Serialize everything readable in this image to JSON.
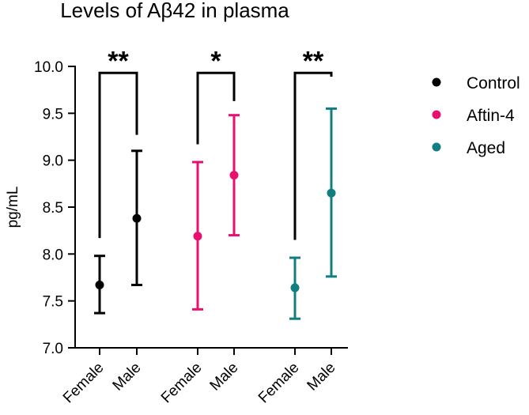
{
  "chart_data": {
    "type": "scatter",
    "title": "Levels of  Aβ42 in plasma",
    "ylabel": "pg/mL",
    "xlabel": "",
    "ylim": [
      7.0,
      10.0
    ],
    "yticks": [
      "7.0",
      "7.5",
      "8.0",
      "8.5",
      "9.0",
      "9.5",
      "10.0"
    ],
    "ytick_values": [
      7.0,
      7.5,
      8.0,
      8.5,
      9.0,
      9.5,
      10.0
    ],
    "groups": [
      {
        "name": "Control",
        "color": "#000000",
        "categories": [
          "Female",
          "Male"
        ],
        "means": [
          7.67,
          8.38
        ],
        "lower": [
          7.37,
          7.67
        ],
        "upper": [
          7.98,
          9.1
        ],
        "significance": "**"
      },
      {
        "name": "Aftin-4",
        "color": "#e8106e",
        "categories": [
          "Female",
          "Male"
        ],
        "means": [
          8.19,
          8.84
        ],
        "lower": [
          7.41,
          8.2
        ],
        "upper": [
          8.98,
          9.48
        ],
        "significance": "*"
      },
      {
        "name": "Aged",
        "color": "#117f82",
        "categories": [
          "Female",
          "Male"
        ],
        "means": [
          7.64,
          8.65
        ],
        "lower": [
          7.31,
          7.76
        ],
        "upper": [
          7.96,
          9.55
        ],
        "significance": "**"
      }
    ],
    "legend": {
      "position": "right",
      "entries": [
        "Control",
        "Aftin-4",
        "Aged"
      ]
    }
  }
}
